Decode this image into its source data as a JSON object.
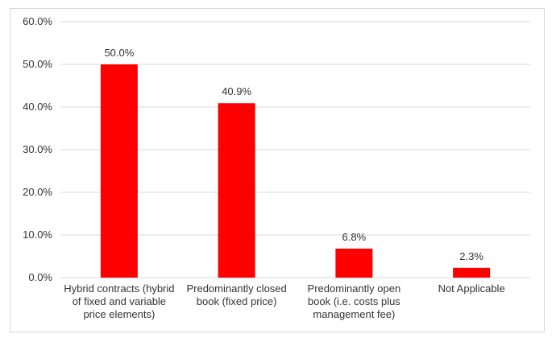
{
  "chart_data": {
    "type": "bar",
    "title": "",
    "xlabel": "",
    "ylabel": "",
    "categories": [
      [
        "Hybrid contracts (hybrid",
        "of fixed and variable",
        "price elements)"
      ],
      [
        "Predominantly closed",
        "book (fixed price)"
      ],
      [
        "Predominantly open",
        "book (i.e. costs plus",
        "management fee)"
      ],
      [
        "Not Applicable"
      ]
    ],
    "values": [
      50.0,
      40.9,
      6.8,
      2.3
    ],
    "data_labels": [
      "50.0%",
      "40.9%",
      "6.8%",
      "2.3%"
    ],
    "ylim": [
      0,
      60
    ],
    "yticks": [
      0,
      10,
      20,
      30,
      40,
      50,
      60
    ],
    "ytick_labels": [
      "0.0%",
      "10.0%",
      "20.0%",
      "30.0%",
      "40.0%",
      "50.0%",
      "60.0%"
    ],
    "grid": true,
    "legend": "none",
    "colors": {
      "bar": "#ff0000",
      "grid": "#d9d9d9",
      "text": "#333333"
    }
  }
}
